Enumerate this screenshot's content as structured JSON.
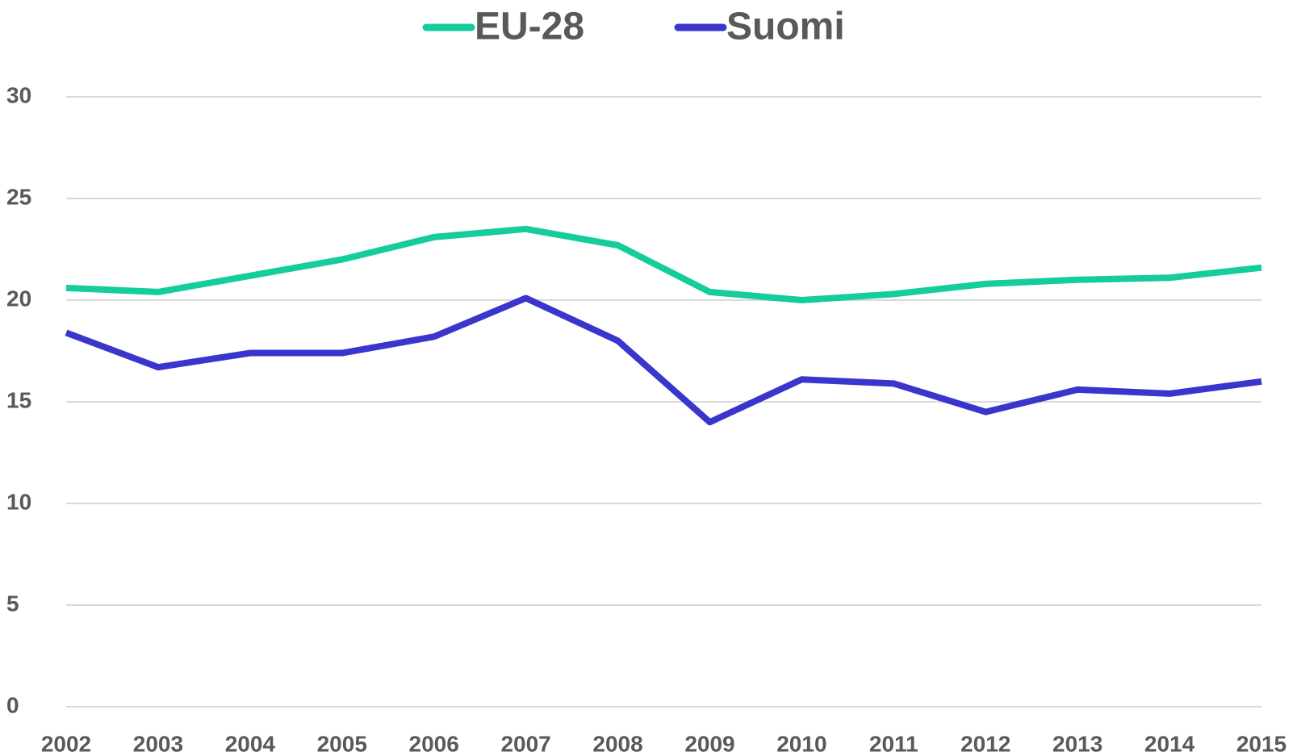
{
  "chart_data": {
    "type": "line",
    "categories": [
      "2002",
      "2003",
      "2004",
      "2005",
      "2006",
      "2007",
      "2008",
      "2009",
      "2010",
      "2011",
      "2012",
      "2013",
      "2014",
      "2015"
    ],
    "series": [
      {
        "name": "EU-28",
        "color": "#14cc9c",
        "values": [
          20.6,
          20.4,
          21.2,
          22.0,
          23.1,
          23.5,
          22.7,
          20.4,
          20.0,
          20.3,
          20.8,
          21.0,
          21.1,
          21.6
        ]
      },
      {
        "name": "Suomi",
        "color": "#3a35cc",
        "values": [
          18.4,
          16.7,
          17.4,
          17.4,
          18.2,
          20.1,
          18.0,
          14.0,
          16.1,
          15.9,
          14.5,
          15.6,
          15.4,
          16.0
        ]
      }
    ],
    "ylim": [
      0,
      30
    ],
    "yticks": [
      0,
      5,
      10,
      15,
      20,
      25,
      30
    ],
    "grid": true,
    "legend": "top"
  }
}
